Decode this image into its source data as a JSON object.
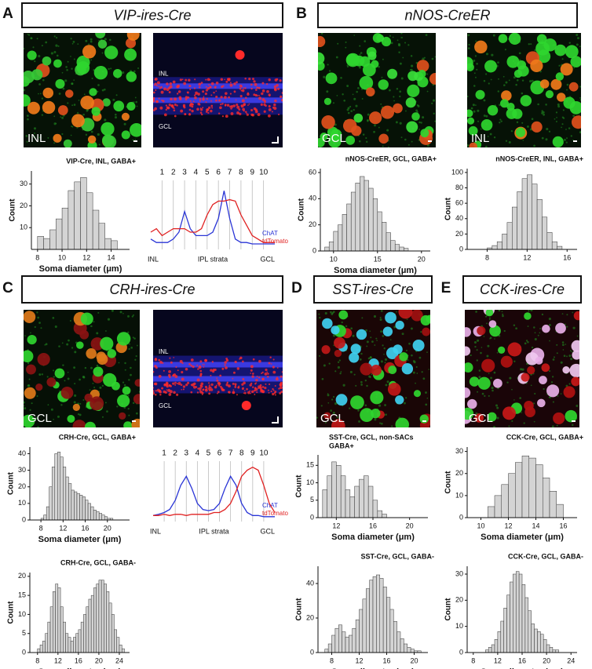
{
  "panels": [
    {
      "letter": "A",
      "title": "VIP-ires-Cre"
    },
    {
      "letter": "B",
      "title": "nNOS-CreER"
    },
    {
      "letter": "C",
      "title": "CRH-ires-Cre"
    },
    {
      "letter": "D",
      "title": "SST-ires-Cre"
    },
    {
      "letter": "E",
      "title": "CCK-ires-Cre"
    }
  ],
  "images": [
    {
      "labels": [
        "INL"
      ]
    },
    {
      "labels": [
        "INL",
        "GCL"
      ]
    },
    {
      "labels": [
        "GCL"
      ]
    },
    {
      "labels": [
        "INL"
      ]
    },
    {
      "labels": [
        "GCL"
      ]
    },
    {
      "labels": [
        "INL",
        "GCL"
      ]
    },
    {
      "labels": [
        "GCL"
      ]
    },
    {
      "labels": [
        "GCL"
      ]
    }
  ],
  "chart_data": [
    {
      "type": "histogram",
      "title": "VIP-Cre, INL, GABA+",
      "x_label": "Soma diameter (μm)",
      "y_label": "Count",
      "color": "#d4d4d4",
      "bins": [
        8,
        8.5,
        9,
        9.5,
        10,
        10.5,
        11,
        11.5,
        12,
        12.5,
        13,
        13.5,
        14,
        14.5
      ],
      "values": [
        6,
        5,
        9,
        14,
        19,
        27,
        31,
        33,
        26,
        18,
        12,
        5,
        4
      ],
      "xlim": [
        7.5,
        15.5
      ],
      "xticks": [
        8,
        10,
        12,
        14
      ],
      "ylim": [
        0,
        36
      ],
      "yticks": [
        10,
        20,
        30
      ]
    },
    {
      "type": "line",
      "x_label": "IPL strata",
      "x_start_label": "INL",
      "x_end_label": "GCL",
      "x": [
        0,
        0.5,
        1,
        1.5,
        2,
        2.5,
        3,
        3.5,
        4,
        4.5,
        5,
        5.5,
        6,
        6.5,
        7,
        7.5,
        8,
        8.5,
        9,
        9.5,
        10,
        10.5,
        11
      ],
      "xlim": [
        0,
        11
      ],
      "xticks": [
        1,
        2,
        3,
        4,
        5,
        6,
        7,
        8,
        9,
        10
      ],
      "ylim": [
        0,
        1
      ],
      "series": [
        {
          "name": "ChAT",
          "color": "#2a35d6",
          "values": [
            0.15,
            0.1,
            0.1,
            0.1,
            0.15,
            0.25,
            0.55,
            0.3,
            0.2,
            0.2,
            0.2,
            0.25,
            0.45,
            0.85,
            0.45,
            0.15,
            0.1,
            0.1,
            0.08,
            0.08,
            0.08,
            0.08,
            0.08
          ]
        },
        {
          "name": "tdTomato",
          "color": "#e02020",
          "values": [
            0.25,
            0.3,
            0.2,
            0.25,
            0.3,
            0.3,
            0.3,
            0.25,
            0.25,
            0.3,
            0.5,
            0.65,
            0.7,
            0.7,
            0.72,
            0.7,
            0.5,
            0.35,
            0.2,
            0.15,
            0.1,
            0.1,
            0.1
          ]
        }
      ]
    },
    {
      "type": "histogram",
      "title": "nNOS-CreER, GCL, GABA+",
      "x_label": "Soma diameter (μm)",
      "y_label": "Count",
      "color": "#d4d4d4",
      "bins": [
        9,
        9.5,
        10,
        10.5,
        11,
        11.5,
        12,
        12.5,
        13,
        13.5,
        14,
        14.5,
        15,
        15.5,
        16,
        16.5,
        17,
        17.5,
        18,
        18.5
      ],
      "values": [
        3,
        7,
        15,
        20,
        28,
        36,
        45,
        52,
        57,
        54,
        48,
        40,
        30,
        22,
        14,
        8,
        5,
        3,
        2
      ],
      "xlim": [
        8.5,
        21
      ],
      "xticks": [
        10,
        15,
        20
      ],
      "ylim": [
        0,
        63
      ],
      "yticks": [
        0,
        20,
        40,
        60
      ]
    },
    {
      "type": "histogram",
      "title": "nNOS-CreER, INL, GABA+",
      "x_label": null,
      "y_label": "Count",
      "color": "#d4d4d4",
      "bins": [
        8,
        8.5,
        9,
        9.5,
        10,
        10.5,
        11,
        11.5,
        12,
        12.5,
        13,
        13.5,
        14,
        14.5,
        15,
        15.5
      ],
      "values": [
        2,
        5,
        10,
        20,
        35,
        55,
        75,
        92,
        97,
        85,
        65,
        42,
        22,
        10,
        4
      ],
      "xlim": [
        6,
        17
      ],
      "xticks": [
        8,
        12,
        16
      ],
      "ylim": [
        0,
        105
      ],
      "yticks": [
        0,
        20,
        40,
        60,
        80,
        100
      ]
    },
    {
      "type": "histogram",
      "title": "CRH-Cre, GCL, GABA+",
      "x_label": "Soma diameter (μm)",
      "y_label": "Count",
      "color": "#d4d4d4",
      "bins": [
        8,
        8.5,
        9,
        9.5,
        10,
        10.5,
        11,
        11.5,
        12,
        12.5,
        13,
        13.5,
        14,
        14.5,
        15,
        15.5,
        16,
        16.5,
        17,
        17.5,
        18,
        18.5,
        19,
        19.5,
        20,
        20.5,
        21
      ],
      "values": [
        1,
        3,
        8,
        20,
        32,
        40,
        41,
        38,
        32,
        26,
        22,
        18,
        17,
        16,
        15,
        14,
        12,
        10,
        8,
        6,
        5,
        4,
        3,
        2,
        1,
        1
      ],
      "xlim": [
        6,
        24
      ],
      "xticks": [
        8,
        12,
        16,
        20
      ],
      "ylim": [
        0,
        44
      ],
      "yticks": [
        0,
        10,
        20,
        30,
        40
      ]
    },
    {
      "type": "line",
      "x_label": "IPL strata",
      "x_start_label": "INL",
      "x_end_label": "GCL",
      "x": [
        0,
        0.5,
        1,
        1.5,
        2,
        2.5,
        3,
        3.5,
        4,
        4.5,
        5,
        5.5,
        6,
        6.5,
        7,
        7.5,
        8,
        8.5,
        9,
        9.5,
        10,
        10.5,
        11
      ],
      "xlim": [
        0,
        11
      ],
      "xticks": [
        1,
        2,
        3,
        4,
        5,
        6,
        7,
        8,
        9,
        10
      ],
      "ylim": [
        0,
        1
      ],
      "series": [
        {
          "name": "ChAT",
          "color": "#2a35d6",
          "values": [
            0.1,
            0.12,
            0.15,
            0.2,
            0.35,
            0.6,
            0.75,
            0.55,
            0.3,
            0.2,
            0.18,
            0.2,
            0.3,
            0.55,
            0.75,
            0.6,
            0.3,
            0.15,
            0.1,
            0.1,
            0.08,
            0.08,
            0.08
          ]
        },
        {
          "name": "tdTomato",
          "color": "#e02020",
          "values": [
            0.1,
            0.1,
            0.12,
            0.1,
            0.12,
            0.12,
            0.1,
            0.12,
            0.12,
            0.12,
            0.12,
            0.15,
            0.15,
            0.2,
            0.3,
            0.5,
            0.75,
            0.85,
            0.9,
            0.85,
            0.6,
            0.3,
            0.15
          ]
        }
      ]
    },
    {
      "type": "histogram",
      "title": "CRH-Cre, GCL, GABA-",
      "x_label": "Soma diameter (μm)",
      "y_label": "Count",
      "color": "#d4d4d4",
      "bins": [
        8,
        8.5,
        9,
        9.5,
        10,
        10.5,
        11,
        11.5,
        12,
        12.5,
        13,
        13.5,
        14,
        14.5,
        15,
        15.5,
        16,
        16.5,
        17,
        17.5,
        18,
        18.5,
        19,
        19.5,
        20,
        20.5,
        21,
        21.5,
        22,
        22.5,
        23,
        23.5,
        24,
        24.5,
        25
      ],
      "values": [
        1,
        2,
        3,
        5,
        8,
        12,
        16,
        18,
        17,
        12,
        8,
        5,
        4,
        3,
        4,
        5,
        6,
        8,
        10,
        12,
        14,
        15,
        17,
        18,
        19,
        19,
        18,
        16,
        13,
        10,
        6,
        4,
        2,
        1
      ],
      "xlim": [
        6.5,
        26
      ],
      "xticks": [
        8,
        12,
        16,
        20,
        24
      ],
      "ylim": [
        0,
        21
      ],
      "yticks": [
        0,
        5,
        10,
        15,
        20
      ]
    },
    {
      "type": "histogram",
      "title": [
        "SST-Cre, GCL, non-SACs",
        "GABA+"
      ],
      "x_label": "Soma diameter (μm)",
      "y_label": "Count",
      "color": "#d4d4d4",
      "bins": [
        10.5,
        11,
        11.5,
        12,
        12.5,
        13,
        13.5,
        14,
        14.5,
        15,
        15.5,
        16,
        16.5,
        17,
        17.5
      ],
      "values": [
        8,
        12,
        16,
        15,
        12,
        8,
        6,
        9,
        11,
        12,
        9,
        5,
        2,
        1
      ],
      "xlim": [
        10,
        22
      ],
      "xticks": [
        12,
        16,
        20
      ],
      "ylim": [
        0,
        18
      ],
      "yticks": [
        0,
        5,
        10,
        15
      ]
    },
    {
      "type": "histogram",
      "title": "SST-Cre, GCL, GABA-",
      "x_label": "Soma diameter (μm)",
      "y_label": "Count",
      "color": "#d4d4d4",
      "bins": [
        7,
        7.5,
        8,
        8.5,
        9,
        9.5,
        10,
        10.5,
        11,
        11.5,
        12,
        12.5,
        13,
        13.5,
        14,
        14.5,
        15,
        15.5,
        16,
        16.5,
        17,
        17.5,
        18,
        18.5,
        19,
        19.5,
        20,
        20.5,
        21
      ],
      "values": [
        2,
        5,
        10,
        14,
        16,
        12,
        9,
        10,
        14,
        19,
        25,
        31,
        37,
        42,
        44,
        45,
        43,
        38,
        32,
        25,
        18,
        12,
        8,
        5,
        3,
        2,
        1,
        1
      ],
      "xlim": [
        6,
        22
      ],
      "xticks": [
        8,
        12,
        16,
        20
      ],
      "ylim": [
        0,
        50
      ],
      "yticks": [
        0,
        20,
        40
      ]
    },
    {
      "type": "histogram",
      "title": "CCK-Cre, GCL, GABA+",
      "x_label": "Soma diameter (μm)",
      "y_label": "Count",
      "color": "#d4d4d4",
      "bins": [
        10.5,
        11,
        11.5,
        12,
        12.5,
        13,
        13.5,
        14,
        14.5,
        15,
        15.5,
        16
      ],
      "values": [
        5,
        10,
        15,
        20,
        25,
        28,
        27,
        24,
        18,
        12,
        6
      ],
      "xlim": [
        9,
        17
      ],
      "xticks": [
        10,
        12,
        14,
        16
      ],
      "ylim": [
        0,
        32
      ],
      "yticks": [
        0,
        10,
        20,
        30
      ]
    },
    {
      "type": "histogram",
      "title": "CCK-Cre, GCL, GABA-",
      "x_label": "Soma diameter (μm)",
      "y_label": "Count",
      "color": "#d4d4d4",
      "bins": [
        10,
        10.5,
        11,
        11.5,
        12,
        12.5,
        13,
        13.5,
        14,
        14.5,
        15,
        15.5,
        16,
        16.5,
        17,
        17.5,
        18,
        18.5,
        19,
        19.5,
        20,
        20.5,
        21,
        21.5,
        22
      ],
      "values": [
        1,
        2,
        3,
        5,
        8,
        12,
        17,
        22,
        27,
        30,
        31,
        30,
        26,
        21,
        16,
        11,
        9,
        8,
        7,
        5,
        3,
        2,
        1,
        1
      ],
      "xlim": [
        7,
        25
      ],
      "xticks": [
        8,
        12,
        16,
        20,
        24
      ],
      "ylim": [
        0,
        33
      ],
      "yticks": [
        0,
        10,
        20,
        30
      ]
    }
  ]
}
